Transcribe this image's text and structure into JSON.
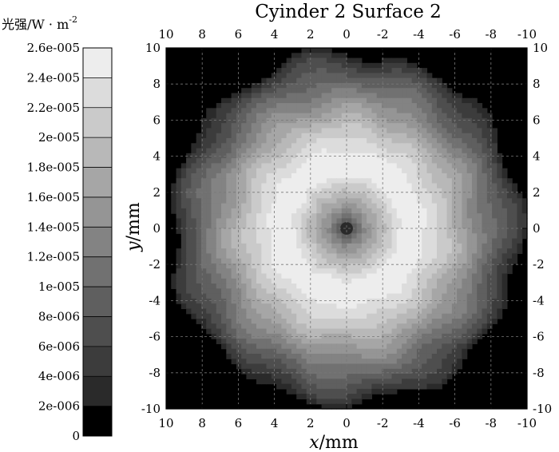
{
  "chart_data": {
    "type": "heatmap",
    "title": "Cyinder 2 Surface 2",
    "xlabel": "x/mm",
    "ylabel": "y/mm",
    "xlim": [
      10,
      -10
    ],
    "ylim": [
      -10,
      10
    ],
    "x_ticks": [
      "10",
      "8",
      "6",
      "4",
      "2",
      "0",
      "-2",
      "-4",
      "-6",
      "-8",
      "-10"
    ],
    "y_ticks": [
      "10",
      "8",
      "6",
      "4",
      "2",
      "0",
      "-2",
      "-4",
      "-6",
      "-8",
      "-10"
    ],
    "grid": true,
    "colorbar": {
      "label": "光强/W·m-2",
      "unit_base": "光强/W · m",
      "unit_exp": "-2",
      "ticks": [
        "2.6e-005",
        "2.4e-005",
        "2.2e-005",
        "2e-005",
        "1.8e-005",
        "1.6e-005",
        "1.4e-005",
        "1.2e-005",
        "1e-005",
        "8e-006",
        "6e-006",
        "4e-006",
        "2e-006",
        "0"
      ],
      "levels": [
        0,
        2e-06,
        4e-06,
        6e-06,
        8e-06,
        1e-05,
        1.2e-05,
        1.4e-05,
        1.6e-05,
        1.8e-05,
        2e-05,
        2.2e-05,
        2.4e-05,
        2.6e-05
      ]
    },
    "intensity_profile": {
      "r_mm": [
        0,
        0.5,
        1,
        1.5,
        2,
        2.5,
        3,
        3.5,
        4,
        4.5,
        5,
        5.5,
        6,
        6.5,
        7,
        7.5,
        8,
        8.5,
        9,
        9.5,
        10
      ],
      "value": [
        6e-06,
        1e-05,
        1.4e-05,
        1.7e-05,
        1.95e-05,
        2.2e-05,
        2.45e-05,
        2.6e-05,
        2.5e-05,
        2.35e-05,
        2.2e-05,
        2.05e-05,
        1.85e-05,
        1.65e-05,
        1.45e-05,
        1.25e-05,
        1.05e-05,
        8.5e-06,
        6.5e-06,
        4e-06,
        0
      ]
    }
  }
}
